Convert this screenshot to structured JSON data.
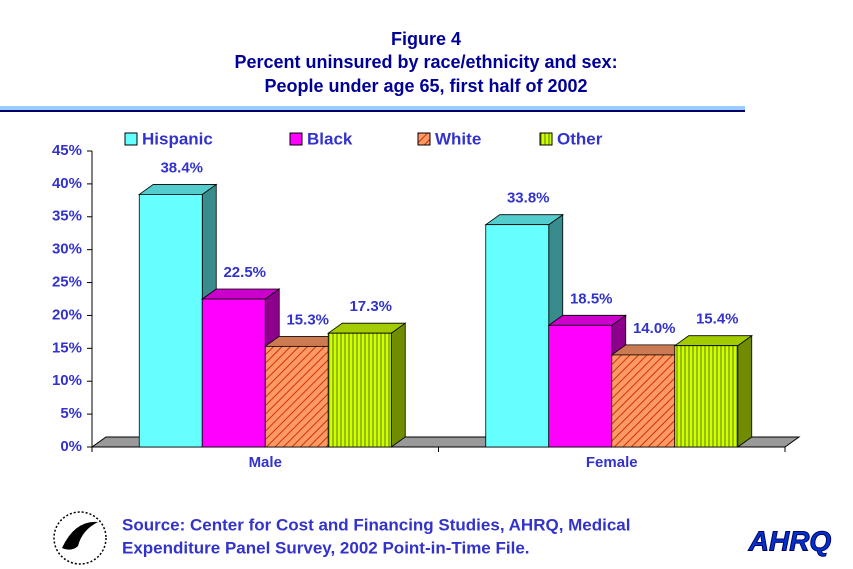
{
  "chart_data": {
    "type": "bar3d",
    "title": "Figure 4",
    "subtitle": [
      "Percent uninsured by race/ethnicity and sex:",
      "People under age 65, first half of 2002"
    ],
    "categories": [
      "Male",
      "Female"
    ],
    "series": [
      {
        "name": "Hispanic",
        "color": "#66ffff",
        "values": [
          38.4,
          33.8
        ],
        "value_labels": [
          "38.4%",
          "33.8%"
        ]
      },
      {
        "name": "Black",
        "color": "#ff00ff",
        "values": [
          22.5,
          18.5
        ],
        "value_labels": [
          "22.5%",
          "18.5%"
        ]
      },
      {
        "name": "White",
        "color": "#ff9966",
        "pattern": "diagonal",
        "values": [
          15.3,
          14.0
        ],
        "value_labels": [
          "15.3%",
          "14.0%"
        ]
      },
      {
        "name": "Other",
        "color": "#ccff00",
        "pattern": "vertical",
        "values": [
          17.3,
          15.4
        ],
        "value_labels": [
          "17.3%",
          "15.4%"
        ]
      }
    ],
    "ylim": [
      0,
      45
    ],
    "yticks": [
      {
        "value": 0,
        "label": "0%"
      },
      {
        "value": 5,
        "label": "5%"
      },
      {
        "value": 10,
        "label": "10%"
      },
      {
        "value": 15,
        "label": "15%"
      },
      {
        "value": 20,
        "label": "20%"
      },
      {
        "value": 25,
        "label": "25%"
      },
      {
        "value": 30,
        "label": "30%"
      },
      {
        "value": 35,
        "label": "35%"
      },
      {
        "value": 40,
        "label": "40%"
      },
      {
        "value": 45,
        "label": "45%"
      }
    ],
    "legend": "top",
    "source": [
      "Source: Center for Cost and Financing Studies, AHRQ, Medical",
      "Expenditure Panel Survey, 2002 Point-in-Time File."
    ],
    "logo_text": "AHRQ"
  }
}
